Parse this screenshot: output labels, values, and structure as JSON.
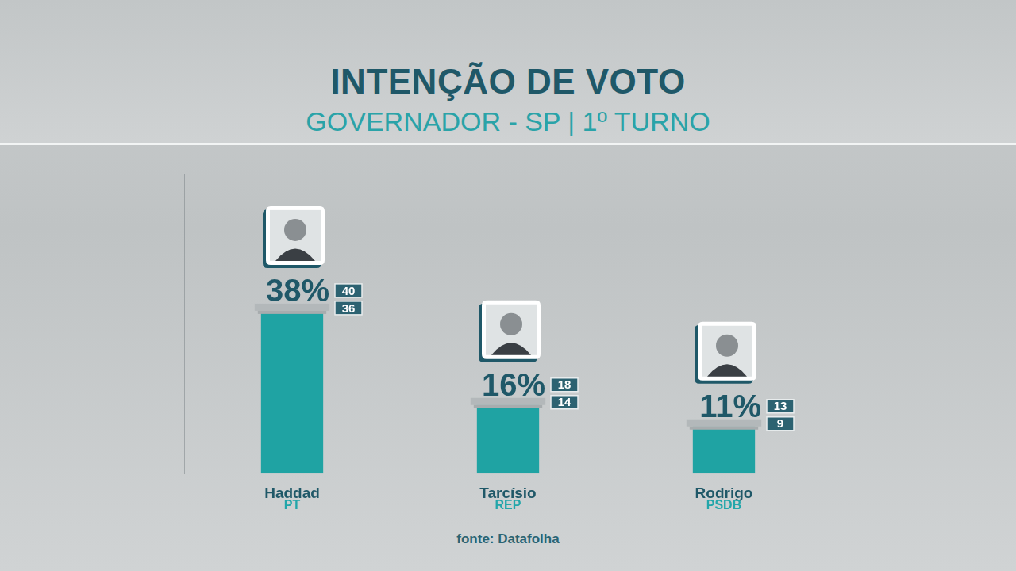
{
  "chart_data": {
    "type": "bar",
    "title": "INTENÇÃO DE VOTO",
    "subtitle": "GOVERNADOR - SP | 1º TURNO",
    "categories": [
      "Haddad",
      "Tarcísio",
      "Rodrigo"
    ],
    "parties": [
      "PT",
      "REP",
      "PSDB"
    ],
    "values": [
      38,
      16,
      11
    ],
    "value_labels": [
      "38%",
      "16%",
      "11%"
    ],
    "upper_bound": [
      40,
      18,
      13
    ],
    "lower_bound": [
      36,
      14,
      9
    ],
    "color": "#1fa3a3",
    "ylim": [
      0,
      70
    ],
    "yticks": [
      0,
      70
    ],
    "grid": false,
    "data_labels": true,
    "tick_labels": "x",
    "source": "fonte: Datafolha"
  }
}
